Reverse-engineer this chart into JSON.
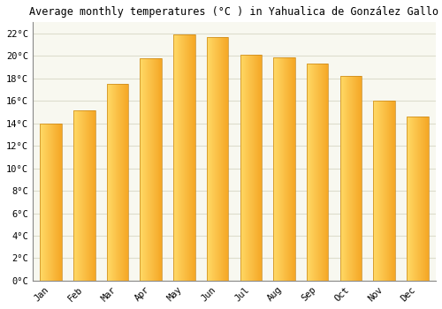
{
  "title": "Average monthly temperatures (°C ) in Yahualica de González Gallo",
  "months": [
    "Jan",
    "Feb",
    "Mar",
    "Apr",
    "May",
    "Jun",
    "Jul",
    "Aug",
    "Sep",
    "Oct",
    "Nov",
    "Dec"
  ],
  "temperatures": [
    14.0,
    15.2,
    17.5,
    19.8,
    21.9,
    21.7,
    20.1,
    19.9,
    19.3,
    18.2,
    16.0,
    14.6
  ],
  "bar_color_main": "#F5A623",
  "bar_color_light": "#FFCC55",
  "bar_color_edge": "#C8871A",
  "ylim": [
    0,
    23
  ],
  "yticks": [
    0,
    2,
    4,
    6,
    8,
    10,
    12,
    14,
    16,
    18,
    20,
    22
  ],
  "ytick_labels": [
    "0°C",
    "2°C",
    "4°C",
    "6°C",
    "8°C",
    "10°C",
    "12°C",
    "14°C",
    "16°C",
    "18°C",
    "20°C",
    "22°C"
  ],
  "background_color": "#FFFFFF",
  "plot_bg_color": "#F8F8F0",
  "grid_color": "#DDDDCC",
  "title_fontsize": 8.5,
  "tick_fontsize": 7.5,
  "bar_width": 0.65
}
